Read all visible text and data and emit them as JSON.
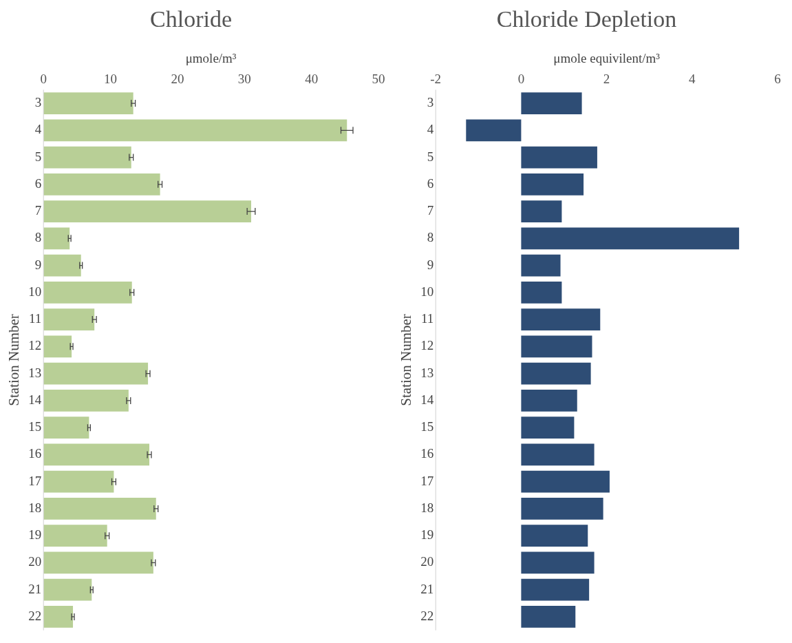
{
  "chart_data": [
    {
      "type": "bar",
      "orientation": "horizontal",
      "title": "Chloride",
      "xlabel": "μmole/m³",
      "ylabel": "Station Number",
      "categories": [
        "3",
        "4",
        "5",
        "6",
        "7",
        "8",
        "9",
        "10",
        "11",
        "12",
        "13",
        "14",
        "15",
        "16",
        "17",
        "18",
        "19",
        "20",
        "21",
        "22"
      ],
      "values": [
        13.4,
        45.3,
        13.1,
        17.4,
        31.0,
        3.9,
        5.6,
        13.2,
        7.6,
        4.2,
        15.6,
        12.7,
        6.8,
        15.8,
        10.5,
        16.8,
        9.5,
        16.4,
        7.2,
        4.4
      ],
      "errors": [
        0.3,
        0.9,
        0.3,
        0.3,
        0.6,
        0.2,
        0.2,
        0.3,
        0.3,
        0.2,
        0.3,
        0.3,
        0.2,
        0.3,
        0.3,
        0.3,
        0.3,
        0.3,
        0.2,
        0.2
      ],
      "color": "#b8cf96",
      "xlim": [
        0,
        50
      ],
      "xticks": [
        0,
        10,
        20,
        30,
        40,
        50
      ],
      "grid": false
    },
    {
      "type": "bar",
      "orientation": "horizontal",
      "title": "Chloride Depletion",
      "xlabel": "μmole equivilent/m³",
      "ylabel": "Station Number",
      "categories": [
        "3",
        "4",
        "5",
        "6",
        "7",
        "8",
        "9",
        "10",
        "11",
        "12",
        "13",
        "14",
        "15",
        "16",
        "17",
        "18",
        "19",
        "20",
        "21",
        "22"
      ],
      "values": [
        1.42,
        -1.29,
        1.78,
        1.46,
        0.95,
        5.1,
        0.92,
        0.95,
        1.85,
        1.66,
        1.63,
        1.31,
        1.24,
        1.71,
        2.07,
        1.92,
        1.56,
        1.71,
        1.59,
        1.27
      ],
      "color": "#2e4d75",
      "xlim": [
        -2,
        6
      ],
      "xticks": [
        -2,
        0,
        2,
        4,
        6
      ],
      "grid": false
    }
  ]
}
